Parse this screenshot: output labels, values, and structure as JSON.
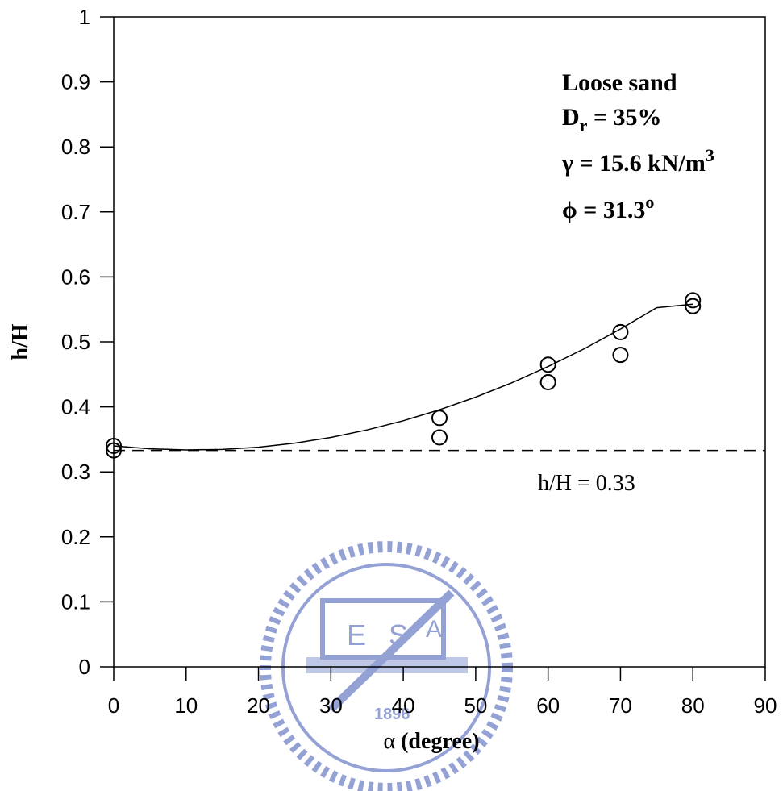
{
  "chart_data": {
    "type": "scatter",
    "title": "",
    "xlabel_symbol": "α",
    "xlabel_text": " (degree)",
    "ylabel": "h/H",
    "xlim": [
      0,
      90
    ],
    "ylim": [
      0,
      1
    ],
    "xticks": [
      0,
      10,
      20,
      30,
      40,
      50,
      60,
      70,
      80,
      90
    ],
    "yticks": [
      0,
      0.1,
      0.2,
      0.3,
      0.4,
      0.5,
      0.6,
      0.7,
      0.8,
      0.9,
      1
    ],
    "ytick_labels": [
      "0",
      "0.1",
      "0.2",
      "0.3",
      "0.4",
      "0.5",
      "0.6",
      "0.7",
      "0.8",
      "0.9",
      "1"
    ],
    "grid": false,
    "series": [
      {
        "marker": "open-circle",
        "x": [
          0,
          0,
          45,
          45,
          60,
          60,
          70,
          70,
          80,
          80
        ],
        "y": [
          0.34,
          0.333,
          0.383,
          0.353,
          0.465,
          0.438,
          0.515,
          0.48,
          0.564,
          0.555
        ]
      }
    ],
    "fit_curve": {
      "style": "solid",
      "x": [
        0,
        5,
        10,
        15,
        20,
        25,
        30,
        35,
        40,
        45,
        50,
        55,
        60,
        65,
        70,
        75,
        80
      ],
      "y": [
        0.34,
        0.3355,
        0.3337,
        0.3345,
        0.338,
        0.3442,
        0.353,
        0.3645,
        0.3787,
        0.3955,
        0.415,
        0.4371,
        0.462,
        0.4895,
        0.5197,
        0.5526,
        0.558
      ]
    },
    "reference_line": {
      "style": "dashed",
      "y": 0.333,
      "label": "h/H = 0.33"
    },
    "annotations": {
      "line1": "Loose sand",
      "line2_main": "D",
      "line2_sub": "r",
      "line2_rest": " = 35%",
      "line3_main": "γ = 15.6 kN/m",
      "line3_sup": "3",
      "line4_main": "ϕ = 31.3",
      "line4_sup": "o"
    }
  },
  "watermark": {
    "text_left": "E",
    "text_mid": "S",
    "text_right": "A",
    "year": "1896"
  },
  "colors": {
    "axis": "#000000",
    "data": "#000000",
    "watermark": "#3d55b3"
  }
}
